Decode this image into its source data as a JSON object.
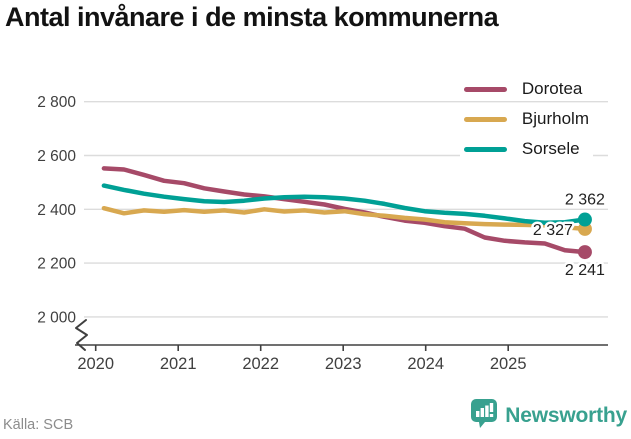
{
  "title": "Antal invånare i de minsta kommunerna",
  "source": "Källa: SCB",
  "brand": {
    "name": "Newsworthy",
    "color": "#38a18f",
    "icon": "newsworthy-speech-bubble-chart-icon"
  },
  "colors": {
    "grid": "#dcdcdc",
    "axis": "#404040",
    "tick_text": "#404040",
    "end_label_text": "#222222"
  },
  "chart_data": {
    "type": "line",
    "title": "Antal invånare i de minsta kommunerna",
    "xlabel": "",
    "ylabel": "",
    "grid": "horizontal",
    "legend_position": "top-right",
    "axis_break": true,
    "x_range": [
      2020.1,
      2025.93
    ],
    "x_ticks": [
      2020,
      2021,
      2022,
      2023,
      2024,
      2025
    ],
    "y_ticks": [
      {
        "value": 2800,
        "label": "2 800"
      },
      {
        "value": 2600,
        "label": "2 600"
      },
      {
        "value": 2400,
        "label": "2 400"
      },
      {
        "value": 2200,
        "label": "2 200"
      },
      {
        "value": 2000,
        "label": "2 000"
      }
    ],
    "series": [
      {
        "name": "Dorotea",
        "color": "#a64a68",
        "end_label": "2 241",
        "values": [
          2552,
          2548,
          2528,
          2506,
          2497,
          2478,
          2466,
          2455,
          2448,
          2438,
          2428,
          2418,
          2402,
          2388,
          2372,
          2358,
          2350,
          2337,
          2328,
          2295,
          2283,
          2277,
          2273,
          2248,
          2241
        ]
      },
      {
        "name": "Bjurholm",
        "color": "#d8a850",
        "end_label": "2 327",
        "values": [
          2404,
          2385,
          2396,
          2391,
          2397,
          2391,
          2396,
          2388,
          2400,
          2392,
          2396,
          2388,
          2393,
          2382,
          2376,
          2368,
          2362,
          2352,
          2348,
          2345,
          2343,
          2342,
          2340,
          2333,
          2327
        ]
      },
      {
        "name": "Sorsele",
        "color": "#00a095",
        "end_label": "2 362",
        "values": [
          2488,
          2472,
          2458,
          2447,
          2438,
          2430,
          2427,
          2432,
          2440,
          2445,
          2447,
          2445,
          2440,
          2432,
          2420,
          2405,
          2393,
          2387,
          2383,
          2376,
          2366,
          2356,
          2350,
          2352,
          2362
        ]
      }
    ]
  }
}
